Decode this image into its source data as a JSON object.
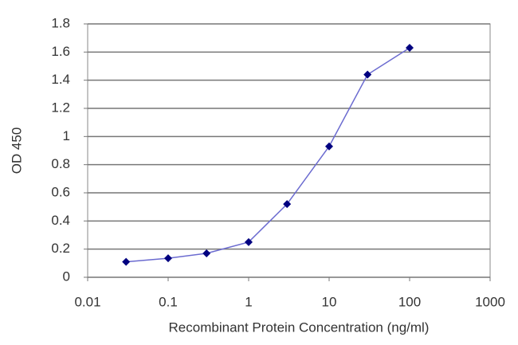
{
  "chart_data": {
    "type": "line",
    "x_label": "Recombinant Protein Concentration (ng/ml)",
    "y_label": "OD 450",
    "x": [
      0.03,
      0.1,
      0.3,
      1,
      3,
      10,
      30,
      100
    ],
    "series": [
      {
        "name": null,
        "color": "#000080",
        "line_color": "#6b6bd0",
        "values": [
          0.11,
          0.135,
          0.17,
          0.25,
          0.52,
          0.93,
          1.44,
          1.63
        ]
      }
    ],
    "xlim": [
      0.01,
      1000
    ],
    "xticks": [
      0.01,
      0.1,
      1,
      10,
      100,
      1000
    ],
    "xscale": "log",
    "ylim": [
      0,
      1.8
    ],
    "yticks": [
      0,
      0.2,
      0.4,
      0.6,
      0.8,
      1,
      1.2,
      1.4,
      1.6,
      1.8
    ],
    "grid": true
  }
}
